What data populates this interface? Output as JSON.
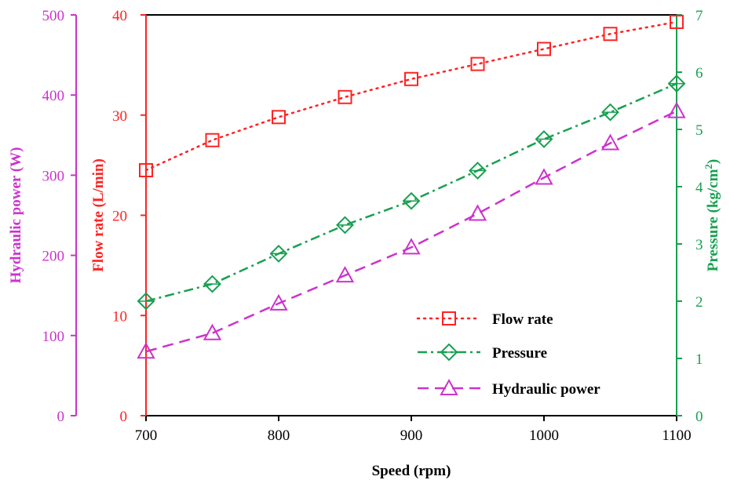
{
  "chart_data": {
    "type": "line",
    "title": "",
    "xlabel": "Speed (rpm)",
    "x": [
      700,
      750,
      800,
      850,
      900,
      950,
      1000,
      1050,
      1100
    ],
    "xlim": [
      700,
      1100
    ],
    "xticks": [
      700,
      800,
      900,
      1000,
      1100
    ],
    "grid": false,
    "legend_position": "bottom-right",
    "axes": {
      "power": {
        "label": "Hydraulic power (W)",
        "color": "#cc33cc",
        "ylim": [
          0,
          500
        ],
        "ticks": [
          0,
          100,
          200,
          300,
          400,
          500
        ]
      },
      "flow": {
        "label": "Flow rate (L/min)",
        "color": "#ff2222",
        "ylim": [
          0,
          40
        ],
        "ticks": [
          0,
          10,
          20,
          30,
          40
        ]
      },
      "pressure": {
        "label_main": "Pressure (kg/cm",
        "label_sup": "2",
        "label_end": ")",
        "color": "#18a050",
        "ylim": [
          0,
          7
        ],
        "ticks": [
          0,
          1,
          2,
          3,
          4,
          5,
          6,
          7
        ]
      }
    },
    "series": [
      {
        "name": "Flow rate",
        "axis": "flow",
        "color": "#ff2222",
        "marker": "square",
        "dash": "2 6",
        "values": [
          24.5,
          27.5,
          29.8,
          31.8,
          33.6,
          35.1,
          36.6,
          38.1,
          39.3
        ]
      },
      {
        "name": "Pressure",
        "axis": "pressure",
        "color": "#18a050",
        "marker": "diamond",
        "dash": "12 5 3 5",
        "values": [
          2.0,
          2.3,
          2.83,
          3.33,
          3.75,
          4.28,
          4.83,
          5.3,
          5.8
        ]
      },
      {
        "name": "Hydraulic power",
        "axis": "power",
        "color": "#cc33cc",
        "marker": "triangle",
        "dash": "14 8",
        "values": [
          80,
          103,
          140,
          175,
          210,
          252,
          297,
          340,
          380
        ]
      }
    ]
  }
}
